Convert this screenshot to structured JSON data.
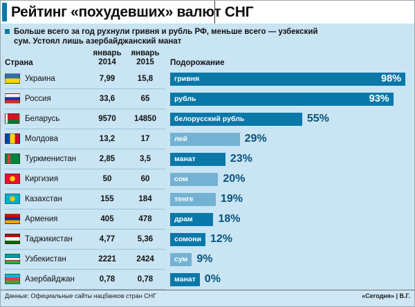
{
  "header": {
    "title": "Рейтинг «похудевших» валют СНГ"
  },
  "subtitle": "Больше всего за год рухнули гривня и рубль РФ, меньше всего — узбекский сум. Устоял лишь азербайджанский манат",
  "table": {
    "col_country": "Страна",
    "col_2014": "январь\n2014",
    "col_2015": "январь\n2015",
    "rows": [
      {
        "country": "Украина",
        "flag": "ua",
        "v2014": "7,99",
        "v2015": "15,8"
      },
      {
        "country": "Россия",
        "flag": "ru",
        "v2014": "33,6",
        "v2015": "65"
      },
      {
        "country": "Беларусь",
        "flag": "by",
        "v2014": "9570",
        "v2015": "14850"
      },
      {
        "country": "Молдова",
        "flag": "md",
        "v2014": "13,2",
        "v2015": "17"
      },
      {
        "country": "Туркменистан",
        "flag": "tm",
        "v2014": "2,85",
        "v2015": "3,5"
      },
      {
        "country": "Киргизия",
        "flag": "kg",
        "v2014": "50",
        "v2015": "60"
      },
      {
        "country": "Казахстан",
        "flag": "kz",
        "v2014": "155",
        "v2015": "184"
      },
      {
        "country": "Армения",
        "flag": "am",
        "v2014": "405",
        "v2015": "478"
      },
      {
        "country": "Таджикистан",
        "flag": "tj",
        "v2014": "4,77",
        "v2015": "5,36"
      },
      {
        "country": "Узбекистан",
        "flag": "uz",
        "v2014": "2221",
        "v2015": "2424"
      },
      {
        "country": "Азербайджан",
        "flag": "az",
        "v2014": "0,78",
        "v2015": "0,78"
      }
    ]
  },
  "chart": {
    "title": "Подорожание",
    "bars": [
      {
        "currency": "гривня",
        "pct": 98,
        "pct_label": "98%",
        "shade": "dark"
      },
      {
        "currency": "рубль",
        "pct": 93,
        "pct_label": "93%",
        "shade": "dark"
      },
      {
        "currency": "белорусский рубль",
        "pct": 55,
        "pct_label": "55%",
        "shade": "dark"
      },
      {
        "currency": "лей",
        "pct": 29,
        "pct_label": "29%",
        "shade": "light"
      },
      {
        "currency": "манат",
        "pct": 23,
        "pct_label": "23%",
        "shade": "dark"
      },
      {
        "currency": "сом",
        "pct": 20,
        "pct_label": "20%",
        "shade": "light"
      },
      {
        "currency": "тенге",
        "pct": 19,
        "pct_label": "19%",
        "shade": "light"
      },
      {
        "currency": "драм",
        "pct": 18,
        "pct_label": "18%",
        "shade": "dark"
      },
      {
        "currency": "сомони",
        "pct": 12,
        "pct_label": "12%",
        "shade": "dark"
      },
      {
        "currency": "сум",
        "pct": 9,
        "pct_label": "9%",
        "shade": "light"
      },
      {
        "currency": "манат",
        "pct": 0,
        "pct_label": "0%",
        "shade": "dark"
      }
    ]
  },
  "footer": {
    "source": "Данные: Официальные сайты нацбанков стран СНГ",
    "credit": "«Сегодня» | В.Г."
  },
  "colors": {
    "background": "#c9e4f3",
    "accent": "#0a78a8",
    "bar_dark": "#0a78a8",
    "bar_light": "#74b2d3",
    "percent_text": "#06537a"
  },
  "chart_data": {
    "type": "bar",
    "orientation": "horizontal",
    "title": "Рейтинг «похудевших» валют СНГ",
    "subtitle": "Больше всего за год рухнули гривня и рубль РФ, меньше всего — узбекский сум. Устоял лишь азербайджанский манат",
    "series_label": "Подорожание",
    "categories": [
      "гривня",
      "рубль",
      "белорусский рубль",
      "лей",
      "манат",
      "сом",
      "тенге",
      "драм",
      "сомони",
      "сум",
      "манат"
    ],
    "values": [
      98,
      93,
      55,
      29,
      23,
      20,
      19,
      18,
      12,
      9,
      0
    ],
    "value_suffix": "%",
    "xlim": [
      0,
      100
    ],
    "legend": false,
    "grid": false,
    "table": {
      "columns": [
        "Страна",
        "январь 2014",
        "январь 2015"
      ],
      "rows": [
        [
          "Украина",
          "7,99",
          "15,8"
        ],
        [
          "Россия",
          "33,6",
          "65"
        ],
        [
          "Беларусь",
          "9570",
          "14850"
        ],
        [
          "Молдова",
          "13,2",
          "17"
        ],
        [
          "Туркменистан",
          "2,85",
          "3,5"
        ],
        [
          "Киргизия",
          "50",
          "60"
        ],
        [
          "Казахстан",
          "155",
          "184"
        ],
        [
          "Армения",
          "405",
          "478"
        ],
        [
          "Таджикистан",
          "4,77",
          "5,36"
        ],
        [
          "Узбекистан",
          "2221",
          "2424"
        ],
        [
          "Азербайджан",
          "0,78",
          "0,78"
        ]
      ],
      "source": "Данные: Официальные сайты нацбанков стран СНГ",
      "credit": "«Сегодня» | В.Г."
    }
  }
}
